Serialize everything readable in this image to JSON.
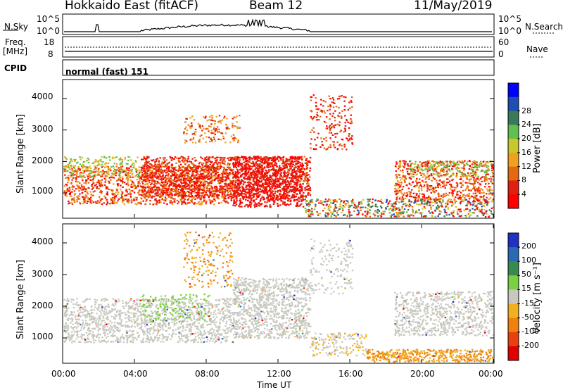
{
  "header": {
    "station": "Hokkaido East (fitACF)",
    "beam": "Beam 12",
    "date": "11/May/2019"
  },
  "top_panels": {
    "nsky_label": "N.Sky",
    "nsky_ticks": [
      "10^5",
      "10^0"
    ],
    "nsearch_label": "N.Search",
    "nsearch_ticks": [
      "10^5",
      "10^0"
    ],
    "freq_label_line1": "Freq.",
    "freq_label_line2": "[MHz]",
    "freq_ticks": [
      "18",
      "8"
    ],
    "nave_label": "Nave",
    "nave_ticks": [
      "60",
      "0"
    ],
    "cpid_label": "CPID",
    "cpid_text": "normal (fast) 151"
  },
  "chart_data": [
    {
      "type": "heatmap",
      "name": "power",
      "ylabel": "Slant Range [km]",
      "yticks": [
        "1000",
        "2000",
        "3000",
        "4000"
      ],
      "ylim": [
        200,
        4600
      ],
      "xlim": [
        "00:00",
        "24:00"
      ],
      "colorbar": {
        "label": "Power [dB]",
        "ticks": [
          "4",
          "8",
          "12",
          "16",
          "20",
          "24",
          "28"
        ],
        "colors": [
          "#0000ff",
          "#1e4fb0",
          "#3a7a5a",
          "#5fbf4f",
          "#c8c82a",
          "#f0a020",
          "#e46a10",
          "#e02010",
          "#ff0000"
        ]
      }
    },
    {
      "type": "heatmap",
      "name": "velocity",
      "ylabel": "Slant Range [km]",
      "yticks": [
        "1000",
        "2000",
        "3000",
        "4000"
      ],
      "ylim": [
        200,
        4600
      ],
      "xlim": [
        "00:00",
        "24:00"
      ],
      "colorbar": {
        "label": "Velocity [m s⁻¹]",
        "ticks": [
          "200",
          "100",
          "50",
          "15",
          "-15",
          "-50",
          "-100",
          "-200"
        ],
        "colors": [
          "#2030c0",
          "#2a6ab0",
          "#3a8a50",
          "#7ad040",
          "#c8c8c0",
          "#f0b020",
          "#f08010",
          "#e84010",
          "#e00000"
        ]
      }
    }
  ],
  "xaxis": {
    "ticks": [
      "00:00",
      "04:00",
      "08:00",
      "12:00",
      "16:00",
      "20:00",
      "00:00"
    ],
    "label": "Time UT"
  }
}
